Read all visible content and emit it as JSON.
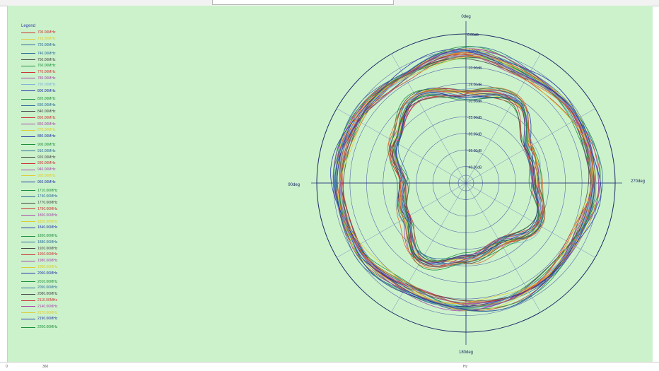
{
  "chart_data": {
    "type": "polar-line",
    "title": "",
    "legend_title": "Legend",
    "angle_labels": {
      "top": "0deg",
      "left": "90deg",
      "right": "270deg",
      "bottom": "180deg"
    },
    "radial_ticks": [
      "0.00dB",
      "-5.00dB",
      "-10.00dB",
      "-15.00dB",
      "-20.00dB",
      "-25.00dB",
      "-30.00dB",
      "-35.00dB",
      "-40.00dB"
    ],
    "radial_range_db": [
      -45,
      0
    ],
    "angles_deg": [
      0,
      30,
      60,
      90,
      120,
      150,
      180,
      210,
      240,
      270,
      300,
      330
    ],
    "legend_groups": [
      [
        {
          "name": "700.00MHz",
          "color": "#cc3333"
        },
        {
          "name": "710.00MHz",
          "color": "#ddcc33"
        },
        {
          "name": "720.00MHz",
          "color": "#2a6a9a"
        }
      ],
      [
        {
          "name": "740.00MHz",
          "color": "#2a6a9a"
        },
        {
          "name": "750.00MHz",
          "color": "#444444"
        },
        {
          "name": "760.00MHz",
          "color": "#1c8f3a"
        },
        {
          "name": "770.00MHz",
          "color": "#cc3333"
        },
        {
          "name": "780.00MHz",
          "color": "#aa44aa"
        },
        {
          "name": "790.00MHz",
          "color": "#7fb2d6"
        },
        {
          "name": "800.00MHz",
          "color": "#2233aa"
        }
      ],
      [
        {
          "name": "820.00MHz",
          "color": "#1c8f3a"
        },
        {
          "name": "830.00MHz",
          "color": "#2a6a9a"
        },
        {
          "name": "840.00MHz",
          "color": "#444444"
        },
        {
          "name": "850.00MHz",
          "color": "#cc3333"
        },
        {
          "name": "860.00MHz",
          "color": "#aa44aa"
        },
        {
          "name": "870.00MHz",
          "color": "#ddcc33"
        },
        {
          "name": "880.00MHz",
          "color": "#2233aa"
        }
      ],
      [
        {
          "name": "900.00MHz",
          "color": "#1c8f3a"
        },
        {
          "name": "910.00MHz",
          "color": "#2a6a9a"
        },
        {
          "name": "920.00MHz",
          "color": "#444444"
        },
        {
          "name": "930.00MHz",
          "color": "#cc3333"
        },
        {
          "name": "940.00MHz",
          "color": "#aa44aa"
        },
        {
          "name": "950.00MHz",
          "color": "#ddcc33"
        },
        {
          "name": "960.00MHz",
          "color": "#2233aa"
        }
      ],
      [
        {
          "name": "1710.00MHz",
          "color": "#1c8f3a"
        },
        {
          "name": "1740.00MHz",
          "color": "#2a6a9a"
        },
        {
          "name": "1770.00MHz",
          "color": "#444444"
        },
        {
          "name": "1790.00MHz",
          "color": "#cc3333"
        },
        {
          "name": "1800.00MHz",
          "color": "#aa44aa"
        },
        {
          "name": "1820.00MHz",
          "color": "#ddcc33"
        },
        {
          "name": "1840.00MHz",
          "color": "#2233aa"
        }
      ],
      [
        {
          "name": "1850.00MHz",
          "color": "#1c8f3a"
        },
        {
          "name": "1880.00MHz",
          "color": "#2a6a9a"
        },
        {
          "name": "1920.00MHz",
          "color": "#444444"
        },
        {
          "name": "1950.00MHz",
          "color": "#cc3333"
        },
        {
          "name": "1980.00MHz",
          "color": "#aa44aa"
        },
        {
          "name": "1990.00MHz",
          "color": "#ddcc33"
        },
        {
          "name": "2000.00MHz",
          "color": "#2233aa"
        }
      ],
      [
        {
          "name": "2010.00MHz",
          "color": "#1c8f3a"
        },
        {
          "name": "2050.00MHz",
          "color": "#2a6a9a"
        },
        {
          "name": "2080.00MHz",
          "color": "#444444"
        },
        {
          "name": "2110.00MHz",
          "color": "#cc3333"
        },
        {
          "name": "2140.00MHz",
          "color": "#aa44aa"
        },
        {
          "name": "2170.00MHz",
          "color": "#ddcc33"
        },
        {
          "name": "2190.00MHz",
          "color": "#2233aa"
        }
      ],
      [
        {
          "name": "2200.00MHz",
          "color": "#1c8f3a"
        }
      ]
    ],
    "pattern_families": [
      {
        "band": "low",
        "shape": "three-lobe",
        "gains_db_at_30deg_steps": [
          -5.5,
          -7.5,
          -7.0,
          -6.0,
          -7.0,
          -8.5,
          -7.5,
          -7.5,
          -8.0,
          -6.0,
          -6.5,
          -7.5
        ],
        "count": 27
      },
      {
        "band": "high",
        "shape": "inner-three-lobe",
        "gains_db_at_30deg_steps": [
          -18,
          -15,
          -20,
          -26,
          -24,
          -18,
          -22,
          -24,
          -20,
          -24,
          -23,
          -16
        ],
        "count": 22
      }
    ],
    "series_colors": [
      "#cc3333",
      "#2a6a9a",
      "#444444",
      "#1c8f3a",
      "#aa44aa",
      "#ddcc33",
      "#2233aa",
      "#7fb2d6",
      "#d96a2b"
    ]
  },
  "statusbar": {
    "left": "0",
    "left2": "360",
    "center": "Hz"
  }
}
